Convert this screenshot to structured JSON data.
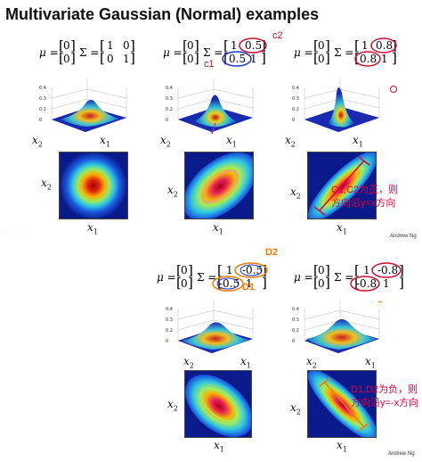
{
  "page": {
    "title": "Multivariate Gaussian (Normal) examples",
    "credit": "Andrew Ng"
  },
  "equations": [
    {
      "mu": "μ = [0 0]",
      "sigma": "Σ = [1 0; 0 1]"
    },
    {
      "mu": "μ = [0 0]",
      "sigma": "Σ = [1 0.5; 0.5 1]"
    },
    {
      "mu": "μ = [0 0]",
      "sigma": "Σ = [1 0.8; 0.8 1]"
    },
    {
      "mu": "μ = [0 0]",
      "sigma": "Σ = [1 -0.5; -0.5 1]"
    },
    {
      "mu": "μ = [0 0]",
      "sigma": "Σ = [1 -0.8; -0.8 1]"
    }
  ],
  "matrix_values": {
    "one": "1",
    "zero": "0",
    "p05": "0.5",
    "p08": "0.8",
    "n05": "-0.5",
    "n08": "-0.8",
    "mu_label": "μ =",
    "sigma_label": "Σ ="
  },
  "axes": {
    "x1": "x",
    "x2": "x",
    "sub1": "1",
    "sub2": "2"
  },
  "annotations": {
    "c1": "c1",
    "c2": "c2",
    "d1": "D1",
    "d2": "D2",
    "note_positive_line1": "C1,C2为正，则",
    "note_positive_line2": "方向沿y=x方向",
    "note_negative_line1": "D1,D2为负，则",
    "note_negative_line2": "方向沿y=-x方向"
  },
  "colors": {
    "annotation_orange": "#f07a00",
    "annotation_blue": "#2233cc",
    "annotation_red": "#e0003c",
    "heatmap_bg": "#0b1a8a"
  }
}
